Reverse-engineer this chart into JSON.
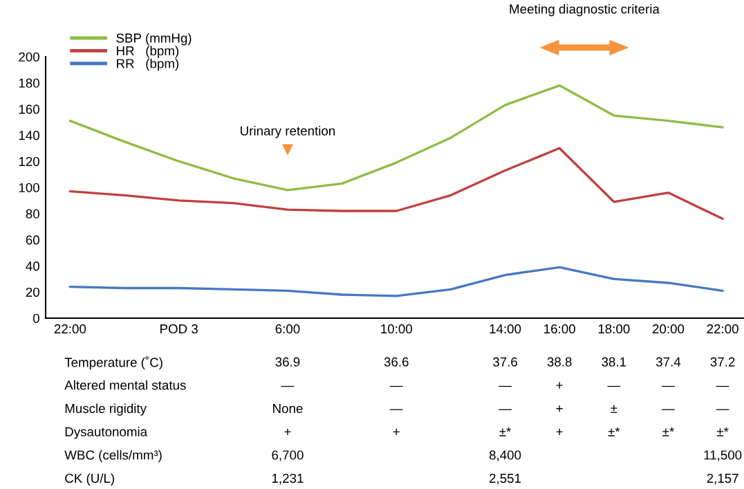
{
  "chart_data": [
    {
      "type": "line",
      "categories": [
        "22:00",
        null,
        "POD 3",
        null,
        "6:00",
        null,
        "10:00",
        null,
        "14:00",
        "16:00",
        "18:00",
        "20:00",
        "22:00"
      ],
      "series": [
        {
          "name": "SBP (mmHg)",
          "color": "#8fbc45",
          "values": [
            151,
            135,
            120,
            107,
            98,
            103,
            119,
            138,
            163,
            178,
            155,
            151,
            146
          ]
        },
        {
          "name": "HR   (bpm)",
          "color": "#c0403f",
          "values": [
            97,
            94,
            90,
            88,
            83,
            82,
            82,
            94,
            113,
            130,
            89,
            96,
            76
          ]
        },
        {
          "name": "RR   (bpm)",
          "color": "#4677c6",
          "values": [
            24,
            23,
            23,
            22,
            21,
            18,
            17,
            22,
            33,
            39,
            30,
            27,
            21
          ]
        }
      ],
      "ylim": [
        0,
        200
      ],
      "yticks": [
        0,
        20,
        40,
        60,
        80,
        100,
        120,
        140,
        160,
        180,
        200
      ],
      "legend": "top left",
      "annotations": [
        {
          "text": "Urinary retention",
          "x": "6:00",
          "y": 129
        },
        "Meeting diagnostic criteria"
      ]
    },
    {
      "type": "heatmap",
      "categories": [
        null,
        null,
        null,
        null,
        null,
        null,
        null,
        null,
        null,
        null,
        null,
        null,
        null
      ],
      "y_categories": [
        "Temperature (˚C)",
        "Altered mental status",
        "Muscle rigidity",
        "Dysautonomia",
        "WBC (cells/mm³)",
        "CK (U/L)"
      ],
      "cells": [
        [
          null,
          null,
          null,
          null,
          null,
          null,
          null,
          null,
          null,
          null,
          null,
          null,
          null
        ],
        [
          null,
          null,
          null,
          null,
          null,
          null,
          null,
          null,
          null,
          null,
          null,
          null,
          null
        ],
        [
          null,
          null,
          null,
          null,
          null,
          null,
          null,
          null,
          null,
          null,
          null,
          null,
          null
        ],
        [
          null,
          null,
          null,
          null,
          null,
          null,
          null,
          null,
          null,
          null,
          null,
          null,
          null
        ],
        [
          null,
          null,
          null,
          null,
          null,
          null,
          null,
          null,
          null,
          null,
          null,
          null,
          null
        ],
        [
          null,
          null,
          null,
          null,
          null,
          null,
          null,
          null,
          null,
          null,
          null,
          null,
          null
        ]
      ],
      "cell_labels": [
        [
          null,
          null,
          null,
          null,
          "36.9",
          null,
          "36.6",
          null,
          "37.6",
          "38.8",
          "38.1",
          "37.4",
          "37.2"
        ],
        [
          null,
          null,
          null,
          null,
          "—",
          null,
          "—",
          null,
          "—",
          "+",
          "—",
          "—",
          "—"
        ],
        [
          null,
          null,
          null,
          null,
          "None",
          null,
          "—",
          null,
          "—",
          "+",
          "±",
          "—",
          "—"
        ],
        [
          null,
          null,
          null,
          null,
          "+",
          null,
          "+",
          null,
          "±*",
          "+",
          "±*",
          "±*",
          "±*"
        ],
        [
          null,
          null,
          null,
          null,
          "6,700",
          null,
          null,
          null,
          "8,400",
          null,
          null,
          null,
          "11,500"
        ],
        [
          null,
          null,
          null,
          null,
          "1,231",
          null,
          null,
          null,
          "2,551",
          null,
          null,
          null,
          "2,157"
        ]
      ]
    }
  ]
}
